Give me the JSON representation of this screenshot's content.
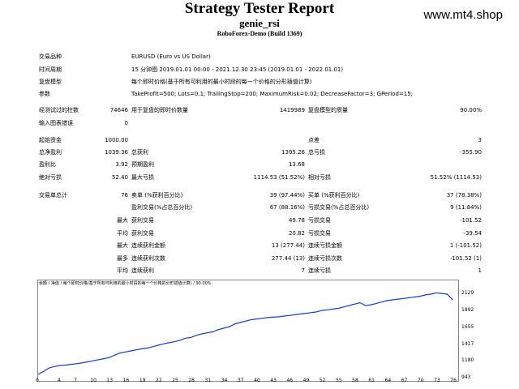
{
  "header": {
    "title": "Strategy Tester Report",
    "subtitle": "genie_rsi",
    "build": "RoboForex-Demo (Build 1369)",
    "watermark": "www.mt4.shop"
  },
  "info": [
    {
      "label": "交易品种",
      "value": "EURUSD (Euro vs US Dollar)"
    },
    {
      "label": "时间周期",
      "value": "15 分钟图 2019.01.01 00:00 - 2021.12.30 23:45 (2019.01.01 - 2022.01.01)"
    },
    {
      "label": "复盘模型",
      "value": "每个即时价格(基于所有可利用的最小时段的每一个价格的分形插值计算)"
    },
    {
      "label": "参数",
      "value": "TakeProfit=500; Lots=0.1; TrailingStop=200; MaximumRisk=0.02; DecreaseFactor=3; GPeriod=15;"
    }
  ],
  "bars": {
    "bars_label": "经测试过的柱数",
    "bars_value": "74646",
    "ticks_label": "用于复盘的即时价数量",
    "ticks_value": "1419989",
    "quality_label": "复盘模型的质量",
    "quality_value": "90.00%",
    "errors_label": "输入图表错误",
    "errors_value": "0"
  },
  "stats": {
    "deposit_label": "起始资金",
    "deposit_value": "1000.00",
    "spread_label": "点差",
    "spread_value": "3",
    "netprofit_label": "总净盈利",
    "netprofit_value": "1039.36",
    "grossprofit_label": "总获利",
    "grossprofit_value": "1395.26",
    "grossloss_label": "总亏损",
    "grossloss_value": "-355.90",
    "pf_label": "盈利比",
    "pf_value": "3.92",
    "expected_label": "预期盈利",
    "expected_value": "13.68",
    "absdd_label": "绝对亏损",
    "absdd_value": "52.40",
    "maxdd_label": "最大亏损",
    "maxdd_value": "1114.53 (51.52%)",
    "reldd_label": "相对亏损",
    "reldd_value": "51.52% (1114.53)"
  },
  "trades": {
    "total_label": "交易单总计",
    "total_value": "76",
    "short_label": "卖单 (%获利百分比)",
    "short_value": "39 (97.44%)",
    "long_label": "买单 (%获利百分比)",
    "long_value": "37 (78.38%)",
    "profit_label": "盈利交易(%占总百分比)",
    "profit_value": "67 (88.16%)",
    "loss_label": "亏损交易(%占总百分比)",
    "loss_value": "9 (11.84%)",
    "max_label": "最大",
    "largest_profit_label": "获利交易",
    "largest_profit_value": "49.78",
    "largest_loss_label": "亏损交易",
    "largest_loss_value": "-101.52",
    "avg_label": "平均",
    "avg_profit_label": "获利交易",
    "avg_profit_value": "20.82",
    "avg_loss_label": "亏损交易",
    "avg_loss_value": "-39.54",
    "max2_label": "最大",
    "cons_wins_label": "连续获利金额",
    "cons_wins_value": "13 (277.44)",
    "cons_losses_label": "连续亏损金额",
    "cons_losses_value": "1 (-101.52)",
    "most_label": "最多",
    "cons_profit_label": "连续获利次数",
    "cons_profit_value": "277.44 (13)",
    "cons_loss_label": "连续亏损次数",
    "cons_loss_value": "-101.52 (1)",
    "avg2_label": "平均",
    "avg_cons_wins_label": "连续获利",
    "avg_cons_wins_value": "7",
    "avg_cons_losses_label": "连续亏损",
    "avg_cons_losses_value": "1"
  },
  "chart_data": {
    "type": "line",
    "legend": "余额 / 净值 / 每个即时价格(基于所有可利用的最小时段的每一个价格的分形插值计算) / 90.00%",
    "x_ticks": [
      "0",
      "4",
      "7",
      "10",
      "13",
      "16",
      "19",
      "22",
      "25",
      "28",
      "31",
      "34",
      "37",
      "40",
      "43",
      "46",
      "49",
      "52",
      "55",
      "58",
      "61",
      "64",
      "67",
      "70",
      "73",
      "76"
    ],
    "y_ticks": [
      "2129",
      "1892",
      "1655",
      "1417",
      "1180",
      "943"
    ],
    "ylim": [
      943,
      2200
    ],
    "xlim": [
      0,
      77
    ],
    "x": [
      0,
      1,
      2,
      3,
      4,
      5,
      6,
      7,
      8,
      9,
      10,
      11,
      12,
      13,
      14,
      15,
      16,
      17,
      18,
      19,
      20,
      21,
      22,
      23,
      24,
      25,
      26,
      27,
      28,
      29,
      30,
      31,
      32,
      33,
      34,
      35,
      36,
      37,
      38,
      39,
      40,
      41,
      42,
      43,
      44,
      45,
      46,
      47,
      48,
      49,
      50,
      51,
      52,
      53,
      54,
      55,
      56,
      57,
      58,
      59,
      60,
      61,
      62,
      63,
      64,
      65,
      66,
      67,
      68,
      69,
      70,
      71,
      72,
      73,
      74,
      75,
      76
    ],
    "values": [
      990,
      1030,
      1080,
      1100,
      1115,
      1120,
      1130,
      1140,
      1150,
      1165,
      1180,
      1195,
      1210,
      1225,
      1260,
      1290,
      1305,
      1320,
      1335,
      1350,
      1360,
      1380,
      1400,
      1420,
      1435,
      1450,
      1470,
      1500,
      1510,
      1540,
      1560,
      1575,
      1590,
      1620,
      1640,
      1660,
      1700,
      1720,
      1740,
      1760,
      1770,
      1780,
      1790,
      1795,
      1800,
      1810,
      1820,
      1830,
      1840,
      1850,
      1860,
      1870,
      1890,
      1900,
      1910,
      1920,
      1940,
      1960,
      1980,
      2000,
      1960,
      1970,
      1990,
      2010,
      2030,
      2040,
      2050,
      2060,
      2070,
      2080,
      2090,
      2110,
      2120,
      2140,
      2130,
      2120,
      2039
    ]
  },
  "colors": {
    "line": "#1a3cc8",
    "legend": "#1a3cc8"
  }
}
